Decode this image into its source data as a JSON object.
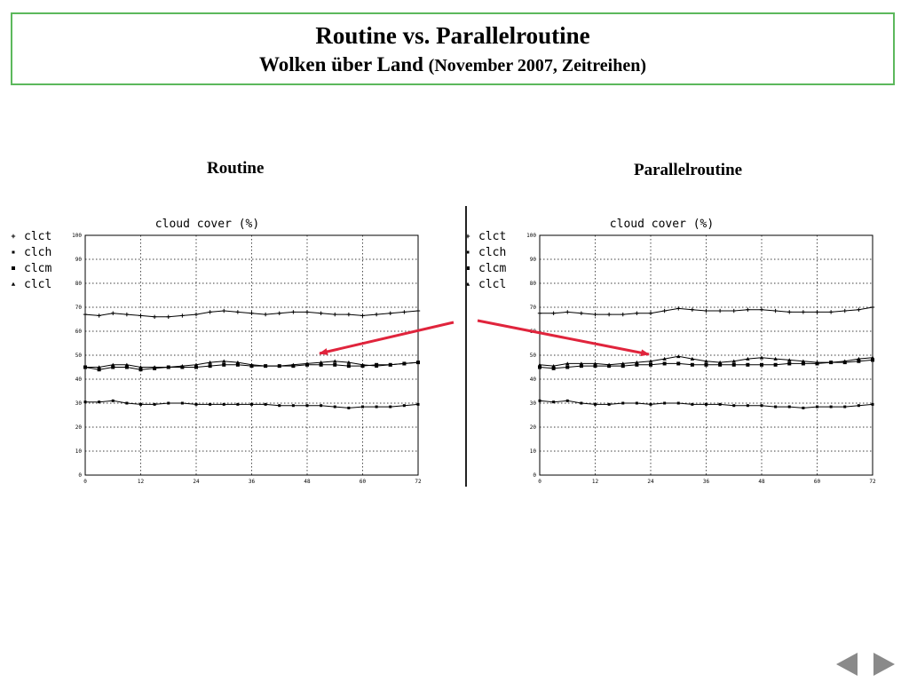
{
  "header": {
    "title": "Routine vs. Parallelroutine",
    "subtitle_main": "Wolken über Land",
    "subtitle_paren": "(November 2007, Zeitreihen)"
  },
  "panels": {
    "left_label": "Routine",
    "right_label": "Parallelroutine"
  },
  "colors": {
    "header_border": "#5cb85c",
    "arrow": "#e0243c",
    "nav": "#8a8a8a"
  },
  "navigation": {
    "prev_icon": "triangle-left-icon",
    "next_icon": "triangle-right-icon"
  },
  "chart_data": [
    {
      "type": "line",
      "title": "cloud cover (%)",
      "xlabel": "",
      "ylabel": "",
      "xlim": [
        0,
        72
      ],
      "ylim": [
        0,
        100
      ],
      "xticks": [
        0,
        12,
        24,
        36,
        48,
        60,
        72
      ],
      "yticks": [
        0,
        10,
        20,
        30,
        40,
        50,
        60,
        70,
        80,
        90,
        100
      ],
      "grid": true,
      "legend_position": "left",
      "series": [
        {
          "name": "clct",
          "marker": "+",
          "x": [
            0,
            3,
            6,
            9,
            12,
            15,
            18,
            21,
            24,
            27,
            30,
            33,
            36,
            39,
            42,
            45,
            48,
            51,
            54,
            57,
            60,
            63,
            66,
            69,
            72
          ],
          "y": [
            67,
            66.5,
            67.5,
            67,
            66.5,
            66,
            66,
            66.5,
            67,
            68,
            68.5,
            68,
            67.5,
            67,
            67.5,
            68,
            68,
            67.5,
            67,
            67,
            66.5,
            67,
            67.5,
            68,
            68.5
          ]
        },
        {
          "name": "clch",
          "marker": "square",
          "x": [
            0,
            3,
            6,
            9,
            12,
            15,
            18,
            21,
            24,
            27,
            30,
            33,
            36,
            39,
            42,
            45,
            48,
            51,
            54,
            57,
            60,
            63,
            66,
            69,
            72
          ],
          "y": [
            30.5,
            30.5,
            31,
            30,
            29.5,
            29.5,
            30,
            30,
            29.5,
            29.5,
            29.5,
            29.5,
            29.5,
            29.5,
            29,
            29,
            29,
            29,
            28.5,
            28,
            28.5,
            28.5,
            28.5,
            29,
            29.5
          ]
        },
        {
          "name": "clcm",
          "marker": "filled-square",
          "x": [
            0,
            3,
            6,
            9,
            12,
            15,
            18,
            21,
            24,
            27,
            30,
            33,
            36,
            39,
            42,
            45,
            48,
            51,
            54,
            57,
            60,
            63,
            66,
            69,
            72
          ],
          "y": [
            45,
            44,
            45,
            45,
            44,
            44.5,
            45,
            45,
            45,
            45.5,
            46,
            46,
            45.5,
            45.5,
            45.5,
            45.5,
            46,
            46,
            46,
            45.5,
            45.5,
            46,
            46,
            46.5,
            47
          ]
        },
        {
          "name": "clcl",
          "marker": "triangle",
          "x": [
            0,
            3,
            6,
            9,
            12,
            15,
            18,
            21,
            24,
            27,
            30,
            33,
            36,
            39,
            42,
            45,
            48,
            51,
            54,
            57,
            60,
            63,
            66,
            69,
            72
          ],
          "y": [
            45,
            45,
            46,
            46,
            45,
            45,
            45,
            45.5,
            46,
            47,
            47.5,
            47,
            46,
            45.5,
            45.5,
            46,
            46.5,
            47,
            47.5,
            47,
            46,
            45.5,
            46,
            46.5,
            47
          ]
        }
      ]
    },
    {
      "type": "line",
      "title": "cloud cover (%)",
      "xlabel": "",
      "ylabel": "",
      "xlim": [
        0,
        72
      ],
      "ylim": [
        0,
        100
      ],
      "xticks": [
        0,
        12,
        24,
        36,
        48,
        60,
        72
      ],
      "yticks": [
        0,
        10,
        20,
        30,
        40,
        50,
        60,
        70,
        80,
        90,
        100
      ],
      "grid": true,
      "legend_position": "left",
      "series": [
        {
          "name": "clct",
          "marker": "+",
          "x": [
            0,
            3,
            6,
            9,
            12,
            15,
            18,
            21,
            24,
            27,
            30,
            33,
            36,
            39,
            42,
            45,
            48,
            51,
            54,
            57,
            60,
            63,
            66,
            69,
            72
          ],
          "y": [
            67.5,
            67.5,
            68,
            67.5,
            67,
            67,
            67,
            67.5,
            67.5,
            68.5,
            69.5,
            69,
            68.5,
            68.5,
            68.5,
            69,
            69,
            68.5,
            68,
            68,
            68,
            68,
            68.5,
            69,
            70
          ]
        },
        {
          "name": "clch",
          "marker": "square",
          "x": [
            0,
            3,
            6,
            9,
            12,
            15,
            18,
            21,
            24,
            27,
            30,
            33,
            36,
            39,
            42,
            45,
            48,
            51,
            54,
            57,
            60,
            63,
            66,
            69,
            72
          ],
          "y": [
            31,
            30.5,
            31,
            30,
            29.5,
            29.5,
            30,
            30,
            29.5,
            30,
            30,
            29.5,
            29.5,
            29.5,
            29,
            29,
            29,
            28.5,
            28.5,
            28,
            28.5,
            28.5,
            28.5,
            29,
            29.5
          ]
        },
        {
          "name": "clcm",
          "marker": "filled-square",
          "x": [
            0,
            3,
            6,
            9,
            12,
            15,
            18,
            21,
            24,
            27,
            30,
            33,
            36,
            39,
            42,
            45,
            48,
            51,
            54,
            57,
            60,
            63,
            66,
            69,
            72
          ],
          "y": [
            45,
            44.5,
            45,
            45.5,
            45.5,
            45.5,
            45.5,
            46,
            46,
            46.5,
            46.5,
            46,
            46,
            46,
            46,
            46,
            46,
            46,
            46.5,
            46.5,
            46.5,
            47,
            47,
            47.5,
            48
          ]
        },
        {
          "name": "clcl",
          "marker": "triangle",
          "x": [
            0,
            3,
            6,
            9,
            12,
            15,
            18,
            21,
            24,
            27,
            30,
            33,
            36,
            39,
            42,
            45,
            48,
            51,
            54,
            57,
            60,
            63,
            66,
            69,
            72
          ],
          "y": [
            46,
            45.5,
            46.5,
            46.5,
            46.5,
            46,
            46.5,
            47,
            47.5,
            48.5,
            49.5,
            48.5,
            47.5,
            47,
            47.5,
            48.5,
            49,
            48.5,
            48,
            47.5,
            47,
            47,
            47.5,
            48.5,
            49
          ]
        }
      ]
    }
  ]
}
